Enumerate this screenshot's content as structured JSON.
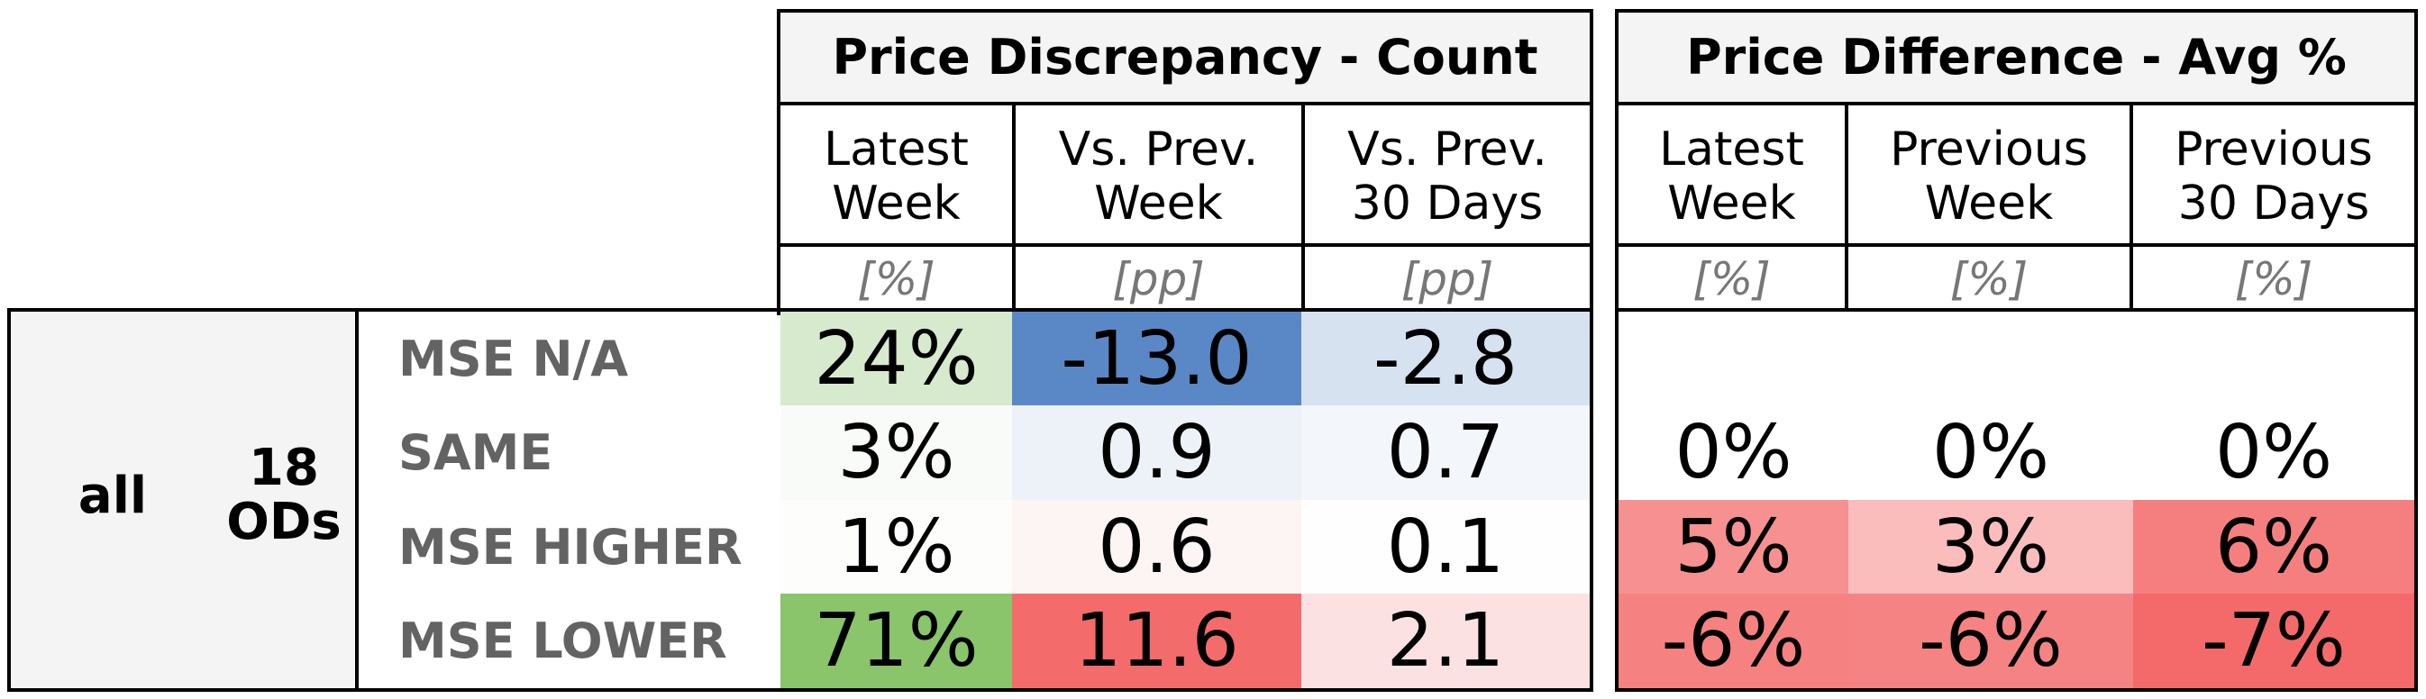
{
  "table": {
    "group": {
      "scope": "all",
      "count": "18",
      "count_unit": "ODs"
    },
    "row_labels": [
      "MSE N/A",
      "SAME",
      "MSE HIGHER",
      "MSE LOWER"
    ],
    "discrepancy": {
      "title": "Price Discrepancy - Count",
      "columns": [
        "Latest\nWeek",
        "Vs. Prev.\nWeek",
        "Vs. Prev.\n30 Days"
      ],
      "units": [
        "[%]",
        "[pp]",
        "[pp]"
      ],
      "rows": [
        [
          "24%",
          "-13.0",
          "-2.8"
        ],
        [
          "3%",
          "0.9",
          "0.7"
        ],
        [
          "1%",
          "0.6",
          "0.1"
        ],
        [
          "71%",
          "11.6",
          "2.1"
        ]
      ],
      "colors": [
        [
          "#d7eacd",
          "#5a87c5",
          "#d6e2f0"
        ],
        [
          "#f9fbf8",
          "#edf2f8",
          "#f3f6fa"
        ],
        [
          "#fdfefc",
          "#fdf4f4",
          "#fefefe"
        ],
        [
          "#8ac46b",
          "#f46b6b",
          "#fbe1e1"
        ]
      ]
    },
    "difference": {
      "title": "Price Difference - Avg %",
      "columns": [
        "Latest\nWeek",
        "Previous\nWeek",
        "Previous\n30 Days"
      ],
      "units": [
        "[%]",
        "[%]",
        "[%]"
      ],
      "rows": [
        [
          "",
          "",
          ""
        ],
        [
          "0%",
          "0%",
          "0%"
        ],
        [
          "5%",
          "3%",
          "6%"
        ],
        [
          "-6%",
          "-6%",
          "-7%"
        ]
      ],
      "colors": [
        [
          "#ffffff",
          "#ffffff",
          "#ffffff"
        ],
        [
          "#ffffff",
          "#ffffff",
          "#ffffff"
        ],
        [
          "#f79191",
          "#fbbcbc",
          "#f57f7f"
        ],
        [
          "#f68181",
          "#f68383",
          "#f46a6a"
        ]
      ]
    }
  }
}
